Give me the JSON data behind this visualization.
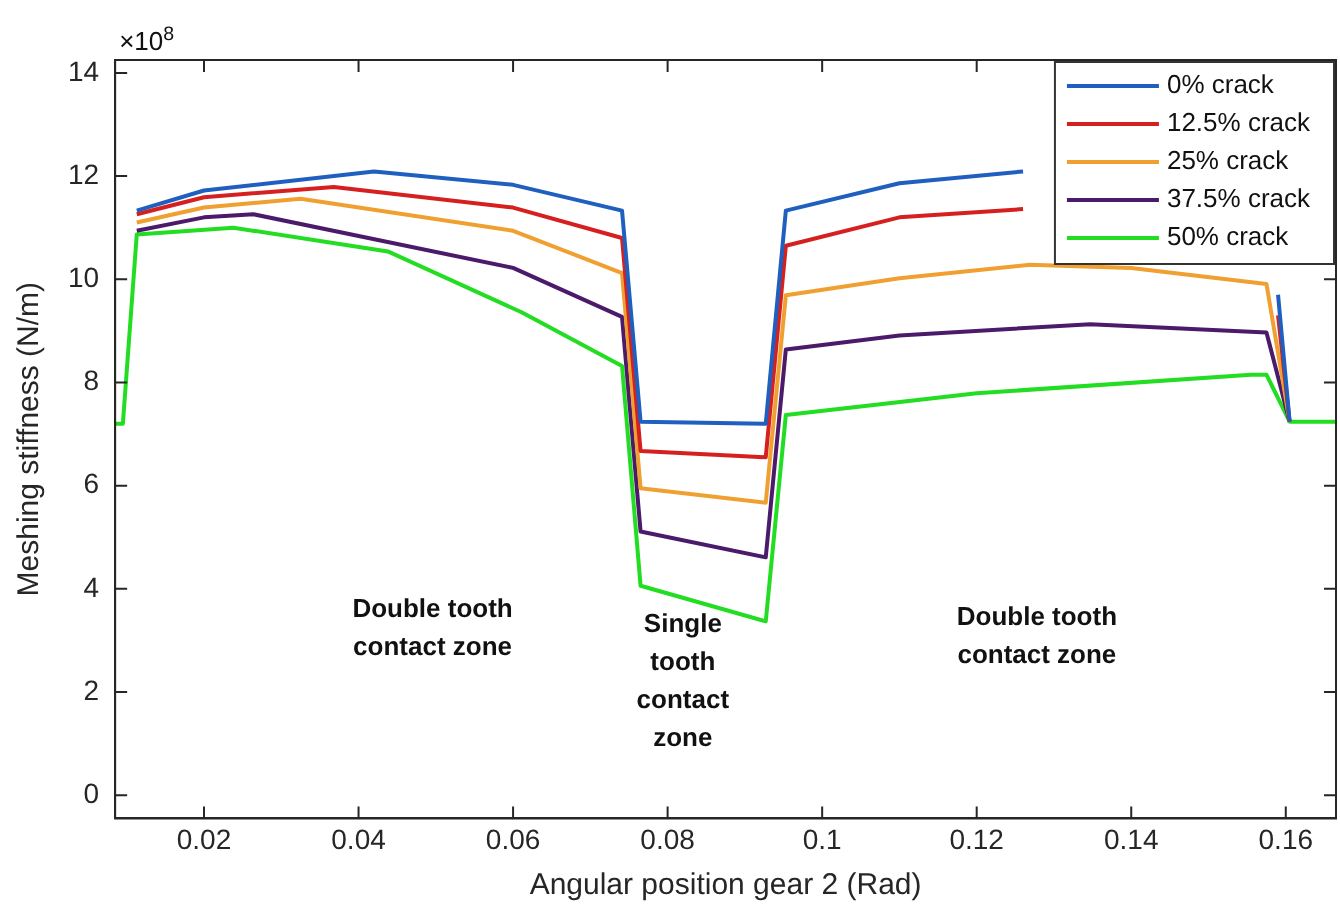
{
  "chart_data": {
    "type": "line",
    "xlabel": "Angular position gear 2 (Rad)",
    "ylabel": "Meshing stiffness (N/m)",
    "xlim": [
      0.0085,
      0.1665
    ],
    "xticks": [
      0.02,
      0.04,
      0.06,
      0.08,
      0.1,
      0.12,
      0.14,
      0.16
    ],
    "ylim": [
      -0.45,
      14.25
    ],
    "yticks": [
      0,
      2,
      4,
      6,
      8,
      10,
      12,
      14
    ],
    "grid": false,
    "legend": "top right",
    "marker": "none",
    "line_style": "solid",
    "series": [
      {
        "name": "0% crack",
        "color": "#1f5fbf",
        "x": [
          0.0113,
          0.02,
          0.042,
          0.06,
          0.0741,
          0.0765,
          0.0927,
          0.0953,
          0.11,
          0.126,
          0.14,
          0.159,
          0.1605
        ],
        "values": [
          11.33,
          11.72,
          12.09,
          11.83,
          11.33,
          7.24,
          7.2,
          11.33,
          11.86,
          12.09,
          null,
          9.7,
          7.24
        ]
      },
      {
        "name": "12.5% crack",
        "color": "#d62020",
        "x": [
          0.0113,
          0.02,
          0.0368,
          0.06,
          0.0741,
          0.0765,
          0.0927,
          0.0953,
          0.11,
          0.126,
          0.14,
          0.159,
          0.1605
        ],
        "values": [
          11.26,
          11.59,
          11.79,
          11.39,
          10.8,
          6.67,
          6.55,
          10.65,
          11.2,
          11.36,
          null,
          9.3,
          7.24
        ]
      },
      {
        "name": "25% crack",
        "color": "#f0a030",
        "x": [
          0.0113,
          0.02,
          0.0325,
          0.06,
          0.0741,
          0.0765,
          0.0927,
          0.0953,
          0.11,
          0.1269,
          0.14,
          0.1575,
          0.1605
        ],
        "values": [
          11.1,
          11.39,
          11.56,
          10.94,
          10.12,
          5.95,
          5.67,
          9.69,
          10.02,
          10.28,
          10.22,
          9.91,
          7.24
        ]
      },
      {
        "name": "37.5% crack",
        "color": "#4b1a6b",
        "x": [
          0.0113,
          0.02,
          0.0264,
          0.06,
          0.0741,
          0.0765,
          0.0927,
          0.0953,
          0.11,
          0.1347,
          0.1575,
          0.1605
        ],
        "values": [
          10.94,
          11.2,
          11.26,
          10.22,
          9.27,
          5.11,
          4.61,
          8.64,
          8.91,
          9.13,
          8.97,
          7.24
        ]
      },
      {
        "name": "50% crack",
        "color": "#22dd22",
        "x": [
          0.0085,
          0.0095,
          0.0113,
          0.0238,
          0.0438,
          0.0611,
          0.0741,
          0.0765,
          0.0927,
          0.0953,
          0.12,
          0.1555,
          0.1575,
          0.1605,
          0.1665
        ],
        "values": [
          7.2,
          7.2,
          10.87,
          11.0,
          10.54,
          9.36,
          8.32,
          4.06,
          3.37,
          7.37,
          7.79,
          8.15,
          8.15,
          7.24,
          7.24
        ]
      }
    ],
    "annotations": [
      "×10$^{8}$",
      "Double tooth\ncontact zone",
      "Single\ntooth\ncontact\nzone",
      "Double tooth\ncontact zone"
    ]
  }
}
